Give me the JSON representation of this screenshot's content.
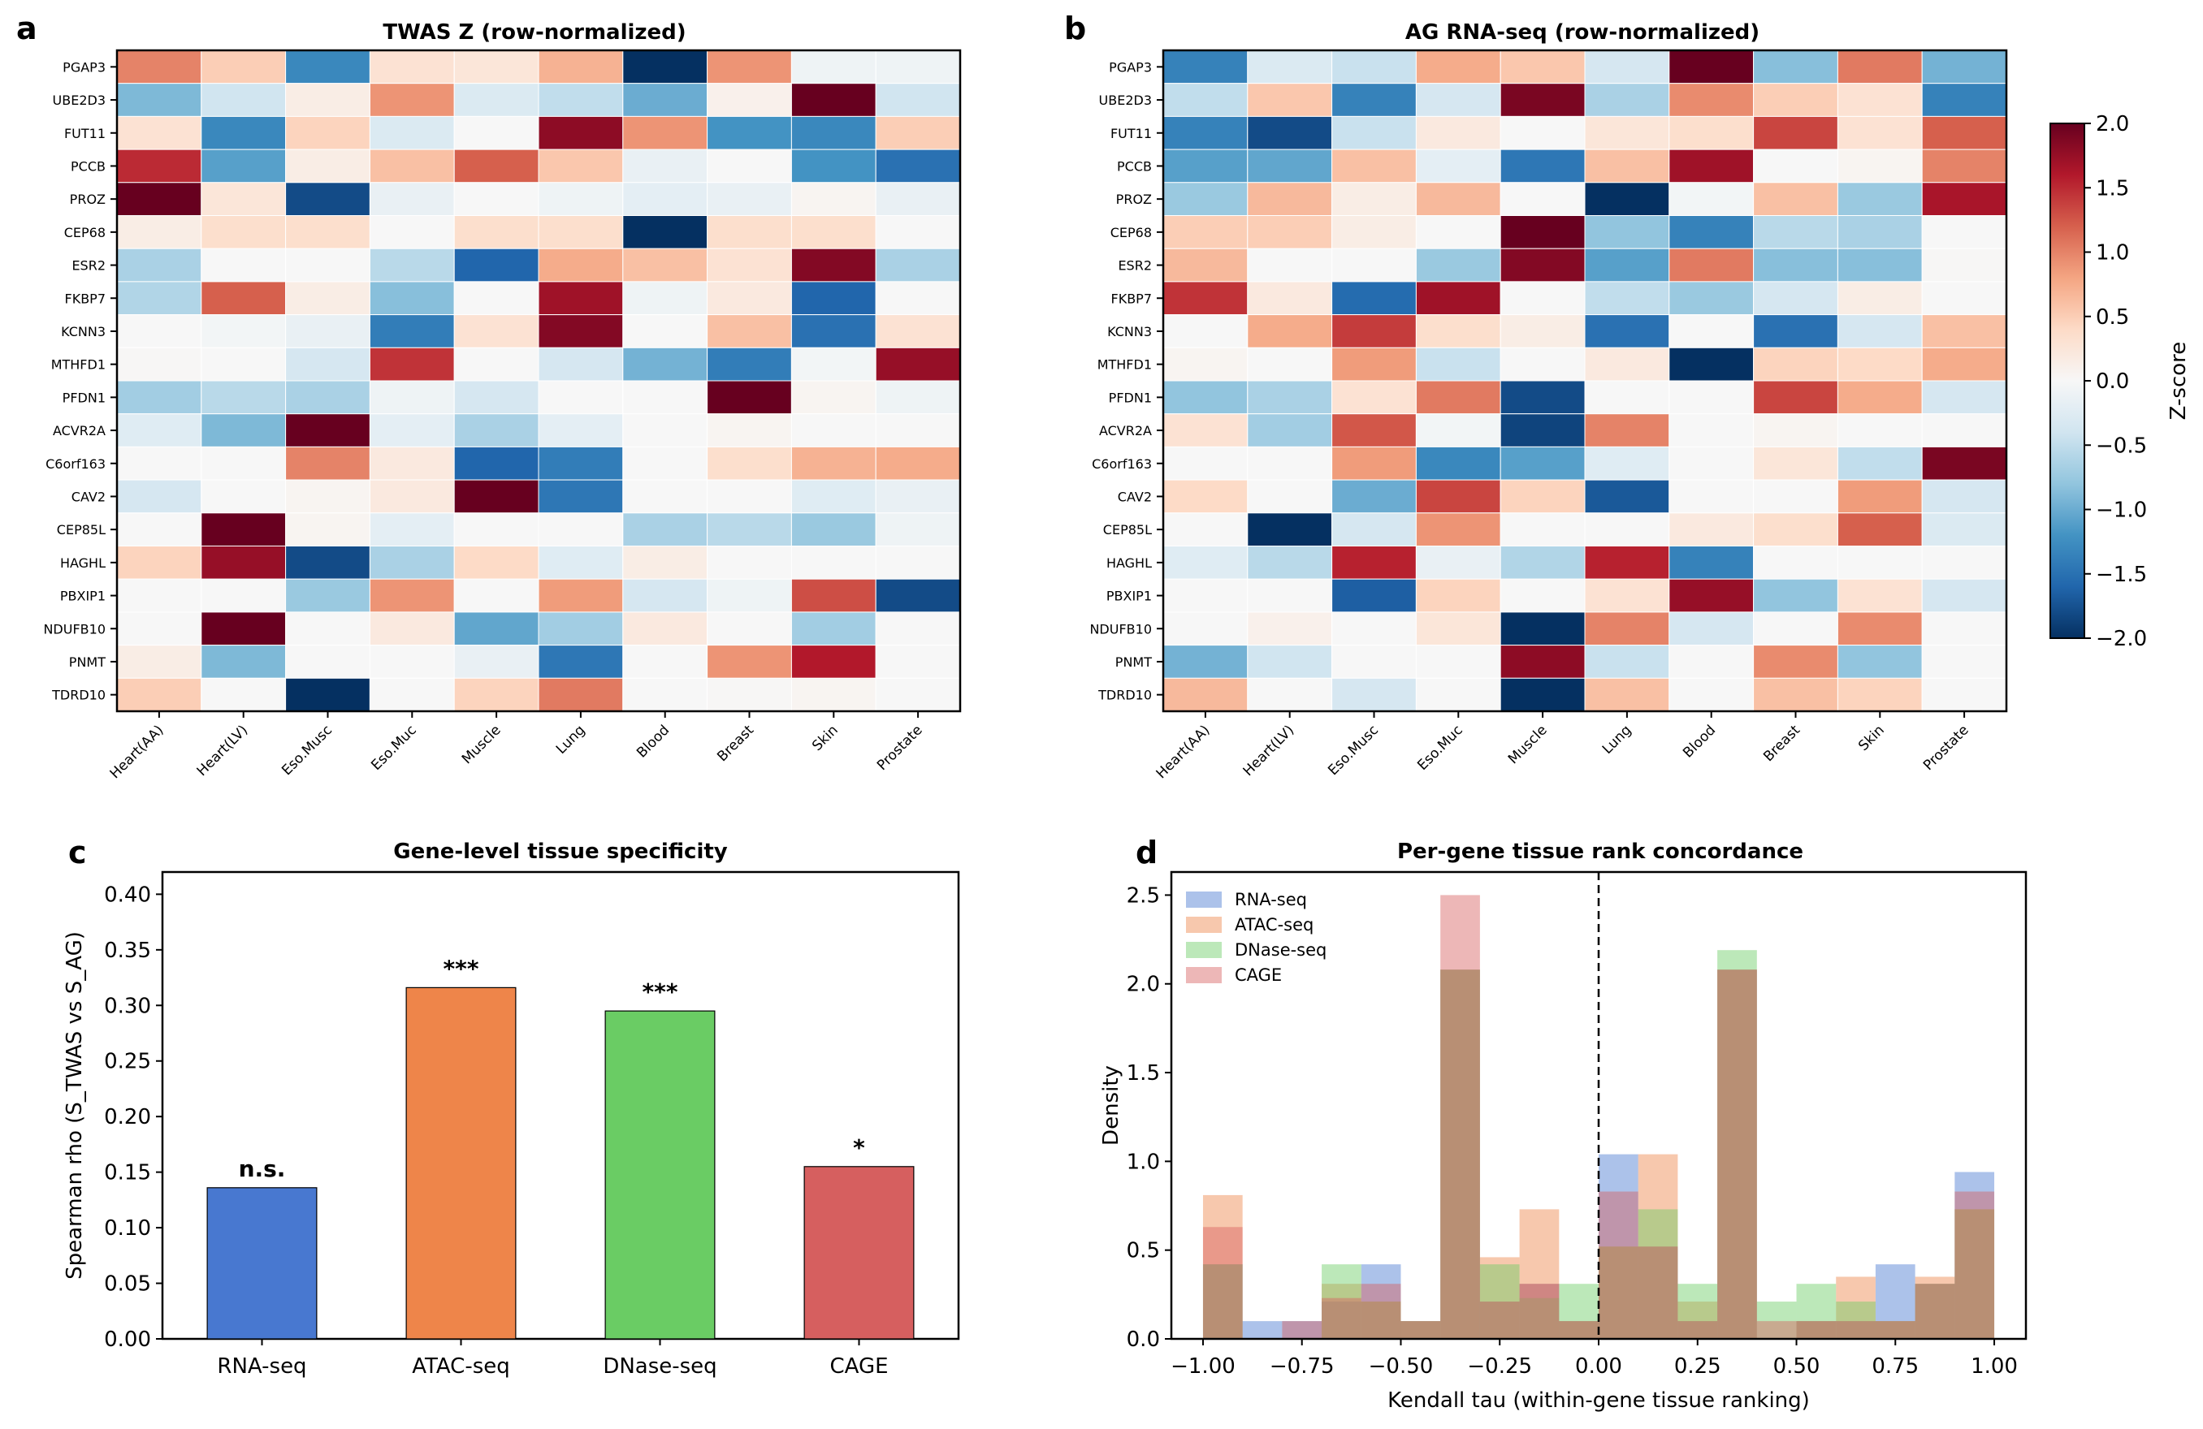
{
  "chart_data": [
    {
      "id": "a",
      "type": "heatmap",
      "panel_letter": "a",
      "title": "TWAS Z (row-normalized)",
      "rows": [
        "PGAP3",
        "UBE2D3",
        "FUT11",
        "PCCB",
        "PROZ",
        "CEP68",
        "ESR2",
        "FKBP7",
        "KCNN3",
        "MTHFD1",
        "PFDN1",
        "ACVR2A",
        "C6orf163",
        "CAV2",
        "CEP85L",
        "HAGHL",
        "PBXIP1",
        "NDUFB10",
        "PNMT",
        "TDRD10"
      ],
      "columns": [
        "Heart(AA)",
        "Heart(LV)",
        "Eso.Musc",
        "Eso.Muc",
        "Muscle",
        "Lung",
        "Blood",
        "Breast",
        "Skin",
        "Prostate"
      ],
      "vmin": -2.0,
      "vmax": 2.0,
      "colormap": "RdBu_r",
      "values": [
        [
          1.0,
          0.5,
          -1.3,
          0.3,
          0.25,
          0.7,
          -2.0,
          0.9,
          -0.1,
          -0.1
        ],
        [
          -0.9,
          -0.4,
          0.15,
          0.9,
          -0.3,
          -0.5,
          -1.0,
          0.1,
          2.0,
          -0.4
        ],
        [
          0.3,
          -1.3,
          0.45,
          -0.3,
          0.0,
          1.8,
          0.9,
          -1.2,
          -1.3,
          0.5
        ],
        [
          1.5,
          -1.1,
          0.15,
          0.6,
          1.2,
          0.55,
          -0.15,
          0.0,
          -1.2,
          -1.5
        ],
        [
          2.0,
          0.25,
          -1.8,
          -0.15,
          0.0,
          -0.1,
          -0.2,
          -0.15,
          0.05,
          -0.15
        ],
        [
          0.15,
          0.35,
          0.35,
          0.0,
          0.35,
          0.35,
          -2.0,
          0.35,
          0.35,
          0.0
        ],
        [
          -0.65,
          0.0,
          0.0,
          -0.55,
          -1.6,
          0.75,
          0.6,
          0.3,
          1.85,
          -0.65
        ],
        [
          -0.6,
          1.2,
          0.15,
          -0.85,
          0.0,
          1.7,
          -0.1,
          0.2,
          -1.6,
          0.0
        ],
        [
          0.0,
          -0.05,
          -0.15,
          -1.4,
          0.3,
          1.85,
          0.0,
          0.6,
          -1.5,
          0.3
        ],
        [
          0.02,
          0.0,
          -0.35,
          1.45,
          0.0,
          -0.35,
          -0.95,
          -1.4,
          -0.05,
          1.75
        ],
        [
          -0.7,
          -0.55,
          -0.65,
          -0.1,
          -0.35,
          0.0,
          0.0,
          2.0,
          0.05,
          -0.1
        ],
        [
          -0.25,
          -0.9,
          2.0,
          -0.2,
          -0.65,
          -0.2,
          0.0,
          0.05,
          0.0,
          0.0
        ],
        [
          0.0,
          0.0,
          1.0,
          0.2,
          -1.6,
          -1.4,
          0.0,
          0.35,
          0.7,
          0.75
        ],
        [
          -0.35,
          0.0,
          0.05,
          0.2,
          2.0,
          -1.45,
          0.0,
          0.0,
          -0.25,
          -0.15
        ],
        [
          0.0,
          2.0,
          0.05,
          -0.2,
          0.0,
          0.0,
          -0.65,
          -0.55,
          -0.75,
          -0.1
        ],
        [
          0.45,
          1.75,
          -1.8,
          -0.65,
          0.4,
          -0.25,
          0.15,
          0.0,
          0.0,
          0.0
        ],
        [
          0.0,
          0.0,
          -0.75,
          0.9,
          0.0,
          0.85,
          -0.35,
          -0.1,
          1.3,
          -1.8
        ],
        [
          0.0,
          2.0,
          0.0,
          0.2,
          -1.05,
          -0.7,
          0.2,
          0.0,
          -0.7,
          0.0
        ],
        [
          0.15,
          -0.9,
          0.0,
          0.0,
          -0.15,
          -1.45,
          0.0,
          0.9,
          1.6,
          0.0
        ],
        [
          0.5,
          0.0,
          -2.0,
          0.0,
          0.45,
          1.05,
          0.0,
          0.02,
          0.05,
          0.0
        ]
      ]
    },
    {
      "id": "b",
      "type": "heatmap",
      "panel_letter": "b",
      "title": "AG RNA-seq (row-normalized)",
      "rows": [
        "PGAP3",
        "UBE2D3",
        "FUT11",
        "PCCB",
        "PROZ",
        "CEP68",
        "ESR2",
        "FKBP7",
        "KCNN3",
        "MTHFD1",
        "PFDN1",
        "ACVR2A",
        "C6orf163",
        "CAV2",
        "CEP85L",
        "HAGHL",
        "PBXIP1",
        "NDUFB10",
        "PNMT",
        "TDRD10"
      ],
      "columns": [
        "Heart(AA)",
        "Heart(LV)",
        "Eso.Musc",
        "Eso.Muc",
        "Muscle",
        "Lung",
        "Blood",
        "Breast",
        "Skin",
        "Prostate"
      ],
      "vmin": -2.0,
      "vmax": 2.0,
      "colormap": "RdBu_r",
      "values": [
        [
          -1.35,
          -0.3,
          -0.45,
          0.75,
          0.55,
          -0.35,
          2.0,
          -0.85,
          1.05,
          -0.95
        ],
        [
          -0.5,
          0.55,
          -1.35,
          -0.35,
          1.9,
          -0.65,
          0.95,
          0.5,
          0.3,
          -1.35
        ],
        [
          -1.35,
          -1.8,
          -0.45,
          0.2,
          0.0,
          0.25,
          0.35,
          1.35,
          0.3,
          1.2
        ],
        [
          -1.1,
          -1.05,
          0.6,
          -0.2,
          -1.45,
          0.6,
          1.7,
          0.0,
          0.05,
          1.0
        ],
        [
          -0.75,
          0.65,
          0.15,
          0.65,
          0.0,
          -2.0,
          -0.05,
          0.6,
          -0.75,
          1.65
        ],
        [
          0.5,
          0.5,
          0.15,
          0.0,
          2.0,
          -0.8,
          -1.35,
          -0.55,
          -0.65,
          0.0
        ],
        [
          0.65,
          0.0,
          0.0,
          -0.75,
          1.85,
          -1.1,
          1.05,
          -0.85,
          -0.85,
          0.02
        ],
        [
          1.45,
          0.2,
          -1.55,
          1.7,
          0.0,
          -0.5,
          -0.75,
          -0.35,
          0.15,
          0.0
        ],
        [
          0.0,
          0.75,
          1.4,
          0.35,
          0.15,
          -1.5,
          0.0,
          -1.5,
          -0.35,
          0.6
        ],
        [
          0.05,
          0.0,
          0.85,
          -0.45,
          0.0,
          0.2,
          -2.0,
          0.45,
          0.4,
          0.75
        ],
        [
          -0.8,
          -0.65,
          0.3,
          1.05,
          -1.8,
          0.0,
          0.0,
          1.35,
          0.75,
          -0.35
        ],
        [
          0.3,
          -0.7,
          1.25,
          -0.05,
          -1.85,
          1.0,
          0.0,
          0.05,
          0.0,
          0.0
        ],
        [
          0.0,
          0.0,
          0.85,
          -1.3,
          -1.1,
          -0.25,
          0.0,
          0.25,
          -0.5,
          1.9
        ],
        [
          0.4,
          0.0,
          -1.0,
          1.35,
          0.45,
          -1.7,
          0.0,
          0.0,
          0.85,
          -0.35
        ],
        [
          0.0,
          -2.0,
          -0.35,
          0.9,
          0.0,
          0.0,
          0.2,
          0.35,
          1.2,
          -0.3
        ],
        [
          -0.25,
          -0.55,
          1.55,
          -0.15,
          -0.6,
          1.55,
          -1.35,
          0.0,
          0.0,
          0.0
        ],
        [
          0.0,
          0.0,
          -1.65,
          0.45,
          0.0,
          0.3,
          1.75,
          -0.8,
          0.3,
          -0.35
        ],
        [
          0.0,
          0.1,
          0.0,
          0.25,
          -2.0,
          1.0,
          -0.35,
          0.0,
          0.95,
          0.0
        ],
        [
          -0.95,
          -0.4,
          0.0,
          0.0,
          1.8,
          -0.45,
          0.0,
          0.95,
          -0.8,
          0.0
        ],
        [
          0.65,
          0.0,
          -0.35,
          0.0,
          -2.0,
          0.6,
          0.0,
          0.6,
          0.45,
          0.0
        ]
      ],
      "colorbar": {
        "label": "Z-score",
        "ticks": [
          2.0,
          1.5,
          1.0,
          0.5,
          0.0,
          -0.5,
          -1.0,
          -1.5,
          -2.0
        ],
        "tick_labels": [
          "2.0",
          "1.5",
          "1.0",
          "0.5",
          "0.0",
          "−0.5",
          "−1.0",
          "−1.5",
          "−2.0"
        ]
      }
    },
    {
      "id": "c",
      "type": "bar",
      "panel_letter": "c",
      "title": "Gene-level tissue specificity",
      "xlabel": "",
      "ylabel": "Spearman rho (S_TWAS vs S_AG)",
      "categories": [
        "RNA-seq",
        "ATAC-seq",
        "DNase-seq",
        "CAGE"
      ],
      "values": [
        0.136,
        0.316,
        0.295,
        0.155
      ],
      "annotations": [
        "n.s.",
        "***",
        "***",
        "*"
      ],
      "colors": [
        "#4878d0",
        "#ee854a",
        "#6acc64",
        "#d65f5f"
      ],
      "ylim": [
        0.0,
        0.42
      ],
      "yticks": [
        0.0,
        0.05,
        0.1,
        0.15,
        0.2,
        0.25,
        0.3,
        0.35,
        0.4
      ],
      "ytick_labels": [
        "0.00",
        "0.05",
        "0.10",
        "0.15",
        "0.20",
        "0.25",
        "0.30",
        "0.35",
        "0.40"
      ],
      "grid": false
    },
    {
      "id": "d",
      "type": "bar",
      "subtype": "histogram",
      "panel_letter": "d",
      "title": "Per-gene tissue rank concordance",
      "xlabel": "Kendall tau (within-gene tissue ranking)",
      "ylabel": "Density",
      "bin_edges_start": -1.0,
      "bin_width": 0.1,
      "xlim": [
        -1.08,
        1.08
      ],
      "ylim": [
        0.0,
        2.63
      ],
      "xticks": [
        -1.0,
        -0.75,
        -0.5,
        -0.25,
        0.0,
        0.25,
        0.5,
        0.75,
        1.0
      ],
      "xtick_labels": [
        "−1.00",
        "−0.75",
        "−0.50",
        "−0.25",
        "0.00",
        "0.25",
        "0.50",
        "0.75",
        "1.00"
      ],
      "yticks": [
        0.0,
        0.5,
        1.0,
        1.5,
        2.0,
        2.5
      ],
      "ytick_labels": [
        "0.0",
        "0.5",
        "1.0",
        "1.5",
        "2.0",
        "2.5"
      ],
      "reference_line_x": 0.0,
      "legend_position": "top-left",
      "grid": false,
      "series": [
        {
          "name": "RNA-seq",
          "color": "#4878d0",
          "values": [
            0.42,
            0.1,
            0.1,
            0.21,
            0.42,
            0.1,
            2.08,
            0.21,
            0.31,
            0.1,
            1.04,
            0.52,
            0.1,
            2.08,
            0.0,
            0.1,
            0.1,
            0.42,
            0.31,
            0.94
          ]
        },
        {
          "name": "ATAC-seq",
          "color": "#ee854a",
          "values": [
            0.81,
            0.0,
            0.0,
            0.31,
            0.21,
            0.1,
            2.08,
            0.46,
            0.73,
            0.1,
            0.52,
            1.04,
            0.21,
            2.08,
            0.0,
            0.1,
            0.35,
            0.1,
            0.35,
            0.73
          ]
        },
        {
          "name": "DNase-seq",
          "color": "#6acc64",
          "values": [
            0.42,
            0.0,
            0.0,
            0.42,
            0.21,
            0.1,
            2.08,
            0.42,
            0.23,
            0.31,
            0.52,
            0.73,
            0.31,
            2.19,
            0.21,
            0.31,
            0.21,
            0.1,
            0.31,
            0.73
          ]
        },
        {
          "name": "CAGE",
          "color": "#d65f5f",
          "values": [
            0.63,
            0.0,
            0.1,
            0.23,
            0.31,
            0.1,
            2.5,
            0.21,
            0.31,
            0.1,
            0.83,
            0.52,
            0.1,
            2.08,
            0.1,
            0.1,
            0.1,
            0.1,
            0.31,
            0.83
          ]
        }
      ]
    }
  ]
}
